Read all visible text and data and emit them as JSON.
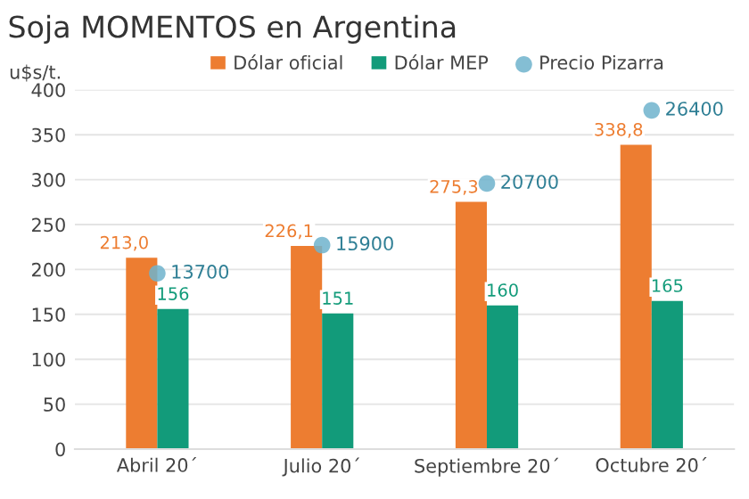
{
  "chart_data": {
    "type": "bar",
    "title": "Soja MOMENTOS en Argentina",
    "ylabel": "u$s/t.",
    "categories": [
      "Abril 20´",
      "Julio 20´",
      "Septiembre 20´",
      "Octubre 20´"
    ],
    "series": [
      {
        "name": "Dólar oficial",
        "color": "#ed7d31",
        "values": [
          213.0,
          226.1,
          275.3,
          338.8
        ],
        "value_labels": [
          "213,0",
          "226,1",
          "275,3",
          "338,8"
        ]
      },
      {
        "name": "Dólar MEP",
        "color": "#129b7a",
        "values": [
          156,
          151,
          160,
          165
        ],
        "value_labels": [
          "156",
          "151",
          "160",
          "165"
        ]
      },
      {
        "name": "Precio Pizarra",
        "type": "scatter",
        "color": "#6fb3cc",
        "axis": "y2",
        "values": [
          13700,
          15900,
          20700,
          26400
        ],
        "value_labels": [
          "13700",
          "15900",
          "20700",
          "26400"
        ],
        "marker": "circle"
      }
    ],
    "ylim": [
      0,
      400
    ],
    "y2lim": [
      0,
      28000
    ],
    "yticks": [
      0,
      50,
      100,
      150,
      200,
      250,
      300,
      350,
      400
    ],
    "grid": "y",
    "legend": "top"
  }
}
